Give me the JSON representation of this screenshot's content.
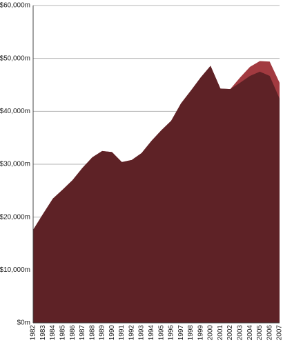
{
  "chart_data": {
    "type": "area",
    "categories": [
      "1982",
      "1983",
      "1984",
      "1985",
      "1986",
      "1987",
      "1988",
      "1989",
      "1990",
      "1991",
      "1992",
      "1993",
      "1994",
      "1995",
      "1996",
      "1997",
      "1998",
      "1999",
      "2000",
      "2001",
      "2002",
      "2003",
      "2004",
      "2005",
      "2006",
      "2007"
    ],
    "series": [
      {
        "color": "#a23a40",
        "values": [
          17600,
          20600,
          23500,
          25200,
          27000,
          29300,
          31300,
          32500,
          32300,
          30400,
          30800,
          32100,
          34400,
          36400,
          38200,
          41500,
          43900,
          46400,
          48600,
          44300,
          44200,
          46400,
          48400,
          49500,
          49400,
          45400
        ]
      },
      {
        "color": "#5e2226",
        "values": [
          17600,
          20600,
          23500,
          25200,
          27000,
          29300,
          31300,
          32500,
          32300,
          30400,
          30800,
          32100,
          34400,
          36400,
          38200,
          41500,
          43900,
          46400,
          48600,
          44300,
          44200,
          45400,
          46700,
          47500,
          46700,
          42400
        ]
      }
    ],
    "ylim": [
      0,
      60000
    ],
    "yticks": [
      {
        "value": 0,
        "label": "$0m"
      },
      {
        "value": 10000,
        "label": "$10,000m"
      },
      {
        "value": 20000,
        "label": "$20,000m"
      },
      {
        "value": 30000,
        "label": "$30,000m"
      },
      {
        "value": 40000,
        "label": "$40,000m"
      },
      {
        "value": 50000,
        "label": "$50,000m"
      },
      {
        "value": 60000,
        "label": "$60,000m"
      }
    ],
    "grid": true
  }
}
